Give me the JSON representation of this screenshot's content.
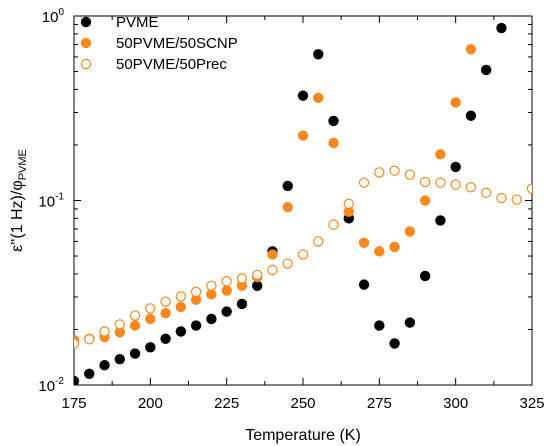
{
  "chart_data": {
    "type": "scatter",
    "xlabel": "Temperature (K)",
    "ylabel_main": "ε''(1 Hz)/φ",
    "ylabel_sub": "PVME",
    "xlim": [
      175,
      325
    ],
    "ylim": [
      0.01,
      1
    ],
    "yscale": "log",
    "x_ticks": [
      175,
      200,
      225,
      250,
      275,
      300,
      325
    ],
    "y_ticks": [
      {
        "value": 0.01,
        "base": "10",
        "exp": "-2"
      },
      {
        "value": 0.1,
        "base": "10",
        "exp": "-1"
      },
      {
        "value": 1,
        "base": "10",
        "exp": "0"
      }
    ],
    "grid": false,
    "legend_position": "top-left",
    "series": [
      {
        "name": "PVME",
        "color": "#000000",
        "marker": "filled-circle",
        "points": [
          [
            175,
            0.0105
          ],
          [
            180,
            0.0115
          ],
          [
            185,
            0.0128
          ],
          [
            190,
            0.0138
          ],
          [
            195,
            0.0148
          ],
          [
            200,
            0.016
          ],
          [
            205,
            0.0178
          ],
          [
            210,
            0.0195
          ],
          [
            215,
            0.021
          ],
          [
            220,
            0.0228
          ],
          [
            225,
            0.025
          ],
          [
            230,
            0.0275
          ],
          [
            235,
            0.0345
          ],
          [
            240,
            0.053
          ],
          [
            245,
            0.12
          ],
          [
            250,
            0.37
          ],
          [
            255,
            0.62
          ],
          [
            260,
            0.27
          ],
          [
            265,
            0.08
          ],
          [
            270,
            0.035
          ],
          [
            275,
            0.021
          ],
          [
            280,
            0.0168
          ],
          [
            285,
            0.0218
          ],
          [
            290,
            0.039
          ],
          [
            295,
            0.078
          ],
          [
            300,
            0.152
          ],
          [
            305,
            0.288
          ],
          [
            310,
            0.51
          ],
          [
            315,
            0.86
          ]
        ]
      },
      {
        "name": "50PVME/50SCNP",
        "color": "#f7891f",
        "marker": "filled-circle",
        "points": [
          [
            175,
            0.0175
          ],
          [
            180,
            0.0178
          ],
          [
            185,
            0.0182
          ],
          [
            190,
            0.0193
          ],
          [
            195,
            0.021
          ],
          [
            200,
            0.0228
          ],
          [
            205,
            0.0245
          ],
          [
            210,
            0.0265
          ],
          [
            215,
            0.029
          ],
          [
            220,
            0.031
          ],
          [
            225,
            0.0325
          ],
          [
            230,
            0.0345
          ],
          [
            235,
            0.0385
          ],
          [
            240,
            0.051
          ],
          [
            245,
            0.092
          ],
          [
            250,
            0.225
          ],
          [
            255,
            0.36
          ],
          [
            260,
            0.205
          ],
          [
            265,
            0.087
          ],
          [
            270,
            0.059
          ],
          [
            275,
            0.053
          ],
          [
            280,
            0.056
          ],
          [
            285,
            0.068
          ],
          [
            290,
            0.1
          ],
          [
            295,
            0.178
          ],
          [
            300,
            0.34
          ],
          [
            305,
            0.66
          ]
        ]
      },
      {
        "name": "50PVME/50Prec",
        "color": "#f7891f",
        "marker": "open-circle",
        "points": [
          [
            175,
            0.0168
          ],
          [
            180,
            0.0177
          ],
          [
            185,
            0.0195
          ],
          [
            190,
            0.0213
          ],
          [
            195,
            0.0238
          ],
          [
            200,
            0.026
          ],
          [
            205,
            0.0283
          ],
          [
            210,
            0.0302
          ],
          [
            215,
            0.032
          ],
          [
            220,
            0.0345
          ],
          [
            225,
            0.0365
          ],
          [
            230,
            0.0378
          ],
          [
            235,
            0.0395
          ],
          [
            240,
            0.042
          ],
          [
            245,
            0.0455
          ],
          [
            250,
            0.051
          ],
          [
            255,
            0.06
          ],
          [
            260,
            0.074
          ],
          [
            265,
            0.096
          ],
          [
            270,
            0.125
          ],
          [
            275,
            0.142
          ],
          [
            280,
            0.145
          ],
          [
            285,
            0.138
          ],
          [
            290,
            0.126
          ],
          [
            295,
            0.125
          ],
          [
            300,
            0.122
          ],
          [
            305,
            0.118
          ],
          [
            310,
            0.11
          ],
          [
            315,
            0.103
          ],
          [
            320,
            0.101
          ],
          [
            325,
            0.116
          ]
        ]
      }
    ]
  }
}
